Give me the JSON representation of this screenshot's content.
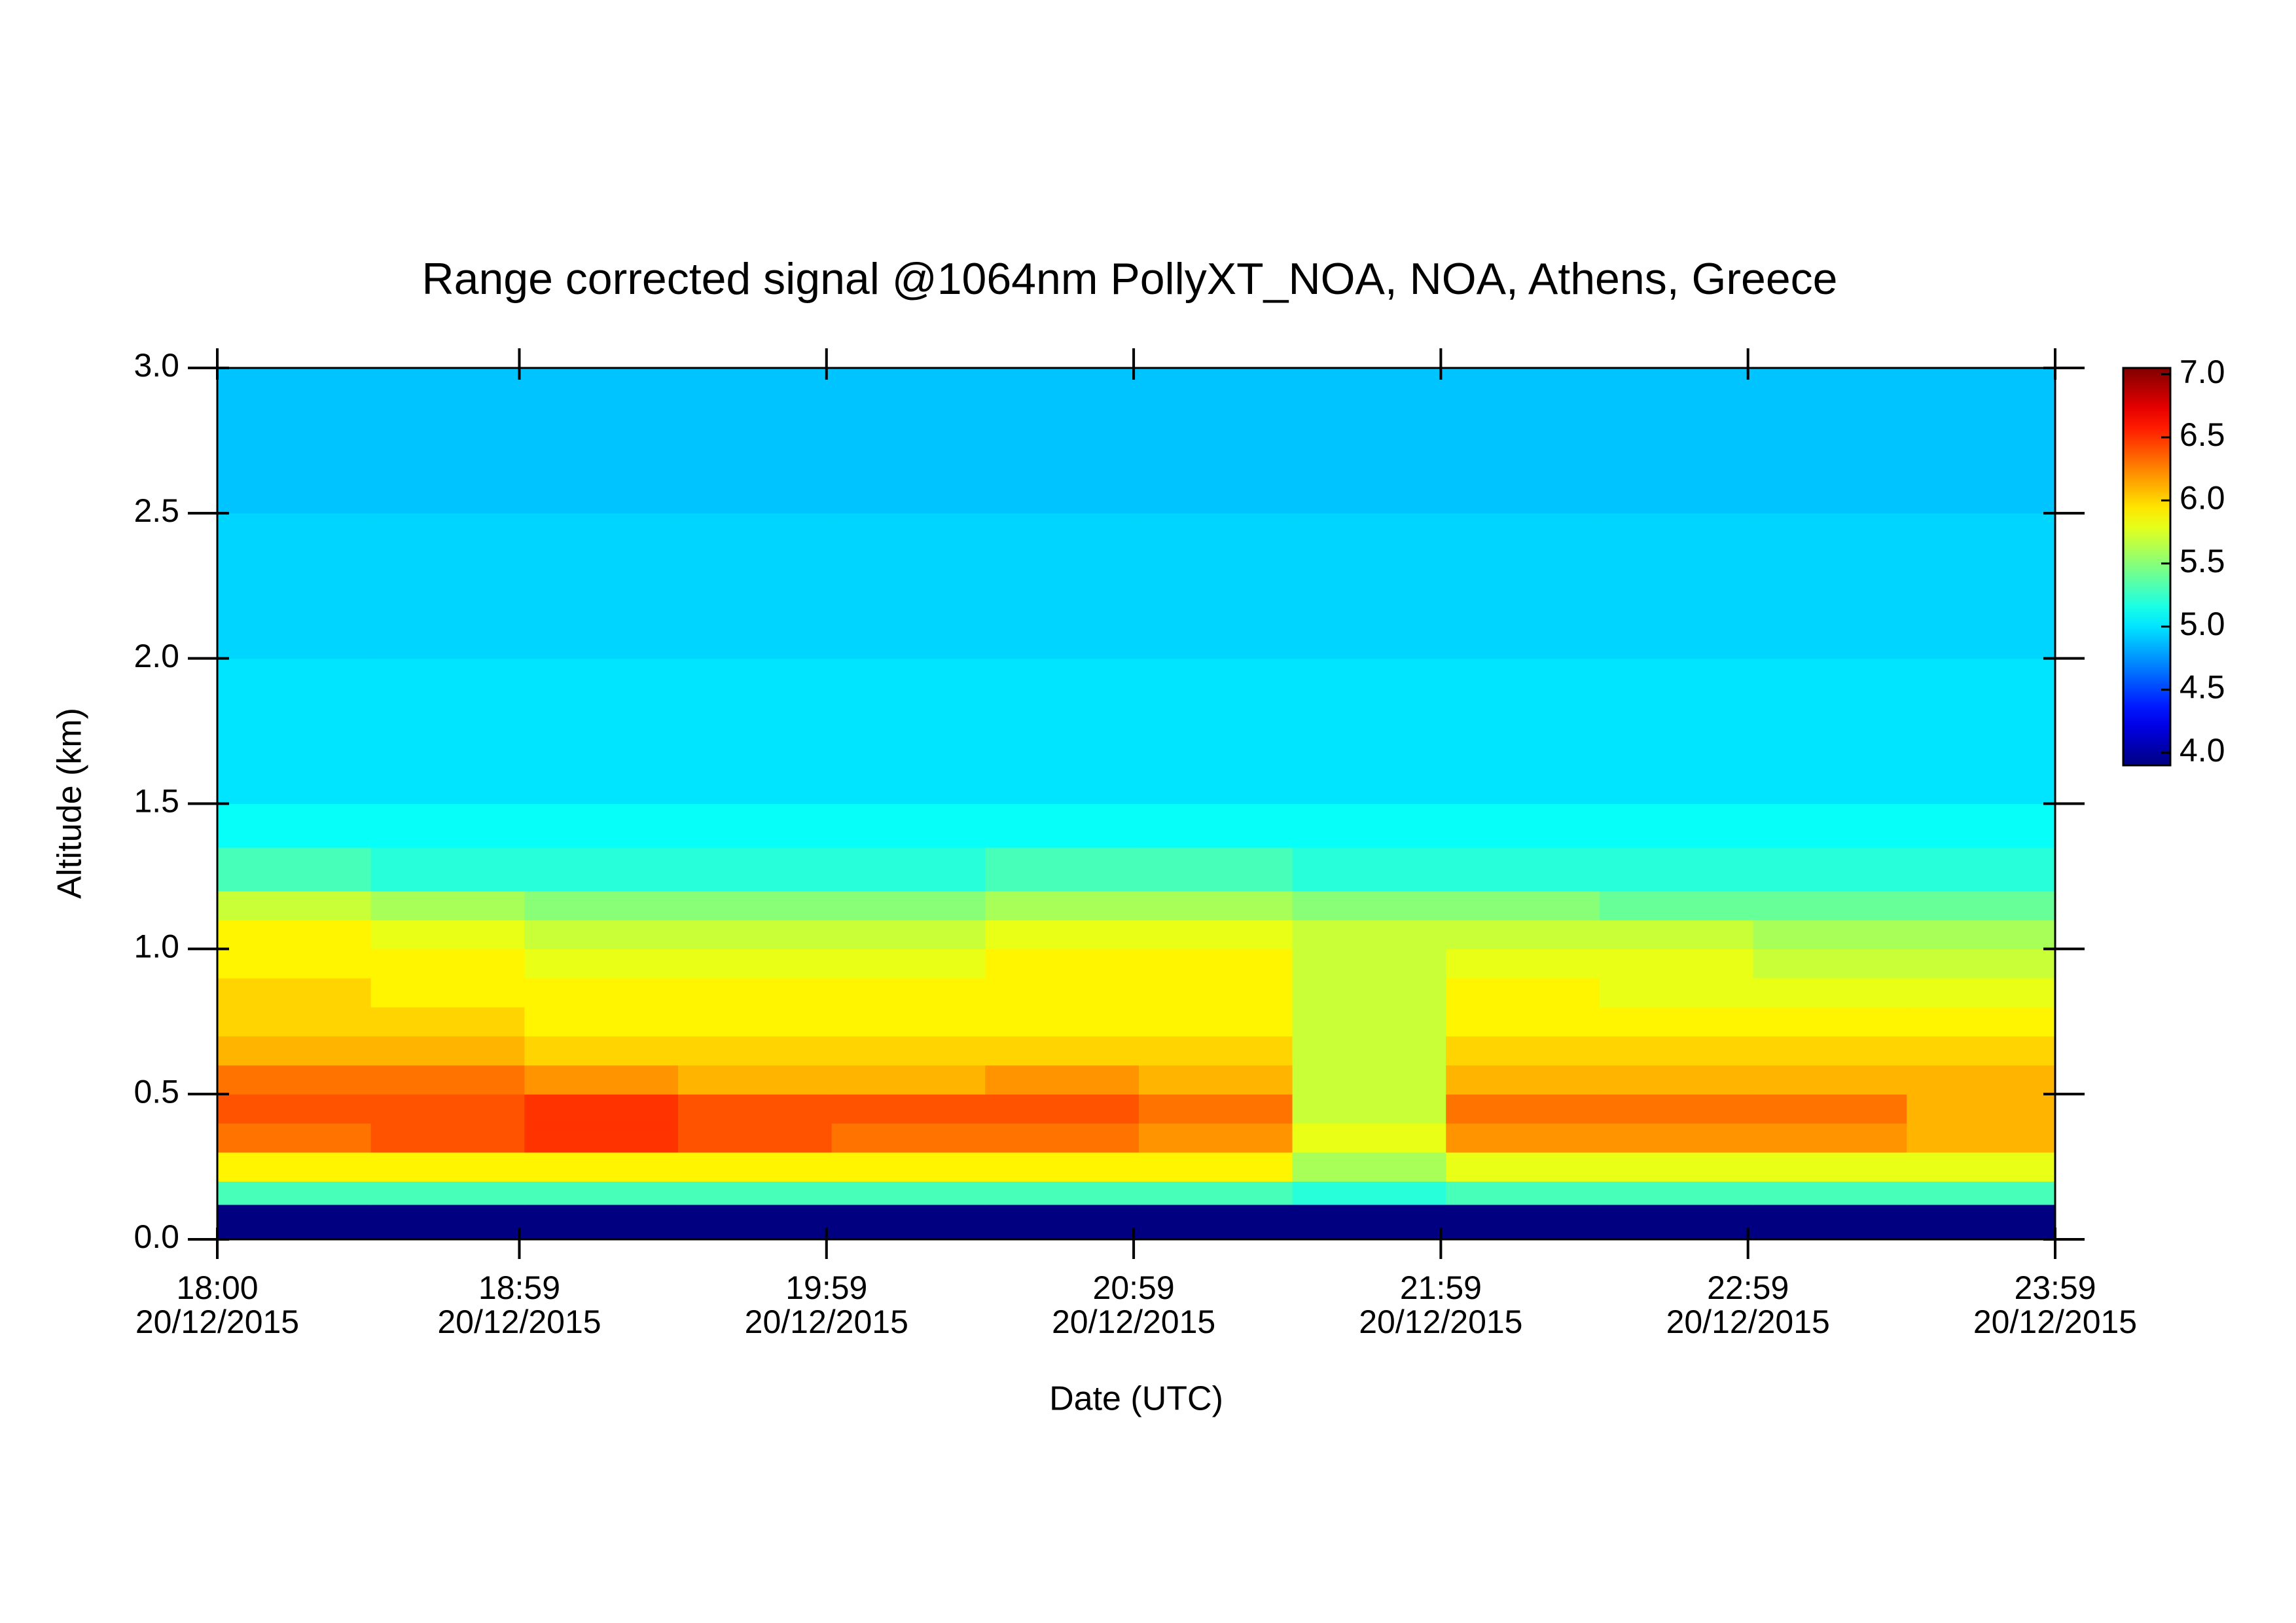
{
  "chart_data": {
    "type": "heatmap",
    "title": "Range corrected signal @1064nm  PollyXT_NOA, NOA, Athens, Greece",
    "xlabel": "Date (UTC)",
    "ylabel": "Altitude (km)",
    "x": [
      18,
      18.5,
      19,
      19.5,
      20,
      20.5,
      21,
      21.5,
      22,
      22.5,
      23,
      23.5,
      23.9833
    ],
    "y": [
      0,
      0.12,
      0.2,
      0.3,
      0.4,
      0.5,
      0.6,
      0.7,
      0.8,
      0.9,
      1.0,
      1.1,
      1.2,
      1.35,
      1.5,
      1.75,
      2.0,
      2.25,
      2.5,
      2.75,
      3.0
    ],
    "z": [
      [
        3.9,
        3.9,
        3.9,
        3.9,
        3.9,
        3.9,
        3.9,
        3.9,
        3.9,
        3.9,
        3.9,
        3.9
      ],
      [
        5.3,
        5.3,
        5.3,
        5.3,
        5.3,
        5.3,
        5.3,
        5.2,
        5.3,
        5.3,
        5.3,
        5.3
      ],
      [
        5.9,
        5.9,
        5.9,
        5.9,
        5.9,
        5.9,
        5.9,
        5.6,
        5.8,
        5.8,
        5.8,
        5.8
      ],
      [
        6.3,
        6.4,
        6.5,
        6.4,
        6.3,
        6.3,
        6.2,
        5.8,
        6.2,
        6.2,
        6.2,
        6.1
      ],
      [
        6.4,
        6.4,
        6.5,
        6.4,
        6.4,
        6.4,
        6.3,
        5.7,
        6.3,
        6.3,
        6.3,
        6.1
      ],
      [
        6.3,
        6.3,
        6.2,
        6.1,
        6.1,
        6.2,
        6.1,
        5.7,
        6.1,
        6.1,
        6.1,
        6.1
      ],
      [
        6.1,
        6.1,
        6.0,
        6.0,
        6.0,
        6.0,
        6.0,
        5.7,
        6.0,
        6.0,
        6.0,
        6.0
      ],
      [
        6.0,
        6.0,
        5.9,
        5.9,
        5.9,
        5.9,
        5.9,
        5.7,
        5.9,
        5.9,
        5.9,
        5.9
      ],
      [
        6.0,
        5.9,
        5.9,
        5.9,
        5.9,
        5.9,
        5.9,
        5.7,
        5.9,
        5.8,
        5.8,
        5.8
      ],
      [
        5.9,
        5.9,
        5.8,
        5.8,
        5.8,
        5.9,
        5.9,
        5.7,
        5.8,
        5.8,
        5.7,
        5.7
      ],
      [
        5.9,
        5.8,
        5.7,
        5.7,
        5.7,
        5.8,
        5.8,
        5.7,
        5.7,
        5.7,
        5.6,
        5.6
      ],
      [
        5.7,
        5.6,
        5.5,
        5.5,
        5.5,
        5.6,
        5.6,
        5.5,
        5.5,
        5.4,
        5.4,
        5.4
      ],
      [
        5.3,
        5.2,
        5.2,
        5.2,
        5.2,
        5.3,
        5.3,
        5.2,
        5.2,
        5.2,
        5.2,
        5.2
      ],
      [
        5.1,
        5.1,
        5.1,
        5.1,
        5.1,
        5.1,
        5.1,
        5.1,
        5.1,
        5.1,
        5.1,
        5.1
      ],
      [
        5.0,
        5.0,
        5.0,
        5.0,
        5.0,
        5.0,
        5.0,
        5.0,
        5.0,
        5.0,
        5.0,
        5.0
      ],
      [
        5.0,
        5.0,
        5.0,
        5.0,
        5.0,
        5.0,
        5.0,
        5.0,
        5.0,
        5.0,
        5.0,
        5.0
      ],
      [
        4.95,
        4.95,
        4.95,
        4.95,
        4.95,
        4.95,
        4.95,
        4.95,
        4.95,
        4.95,
        4.95,
        4.95
      ],
      [
        4.95,
        4.95,
        4.95,
        4.95,
        4.95,
        4.95,
        4.95,
        4.95,
        4.95,
        4.95,
        4.95,
        4.95
      ],
      [
        4.9,
        4.9,
        4.9,
        4.9,
        4.9,
        4.9,
        4.9,
        4.9,
        4.9,
        4.9,
        4.9,
        4.9
      ],
      [
        4.9,
        4.9,
        4.9,
        4.9,
        4.9,
        4.9,
        4.9,
        4.9,
        4.9,
        4.9,
        4.9,
        4.9
      ]
    ],
    "xlim": [
      18,
      23.9833
    ],
    "xticks": [
      {
        "value": 18,
        "label": "18:00",
        "sublabel": "20/12/2015"
      },
      {
        "value": 18.9833,
        "label": "18:59",
        "sublabel": "20/12/2015"
      },
      {
        "value": 19.9833,
        "label": "19:59",
        "sublabel": "20/12/2015"
      },
      {
        "value": 20.9833,
        "label": "20:59",
        "sublabel": "20/12/2015"
      },
      {
        "value": 21.9833,
        "label": "21:59",
        "sublabel": "20/12/2015"
      },
      {
        "value": 22.9833,
        "label": "22:59",
        "sublabel": "20/12/2015"
      },
      {
        "value": 23.9833,
        "label": "23:59",
        "sublabel": "20/12/2015"
      }
    ],
    "ylim": [
      0,
      3.0
    ],
    "yticks": [
      {
        "value": 0,
        "label": "0.0"
      },
      0.5,
      {
        "value": 1,
        "label": "1.0"
      },
      1.5,
      {
        "value": 2,
        "label": "2.0"
      },
      2.5,
      {
        "value": 3,
        "label": "3.0"
      }
    ],
    "zlim": [
      3.9,
      7.05
    ],
    "zticks": [
      {
        "value": 4,
        "label": "4.0"
      },
      4.5,
      {
        "value": 5,
        "label": "5.0"
      },
      5.5,
      {
        "value": 6,
        "label": "6.0"
      },
      6.5,
      {
        "value": 7,
        "label": "7.0"
      }
    ],
    "colormap": "jet"
  }
}
